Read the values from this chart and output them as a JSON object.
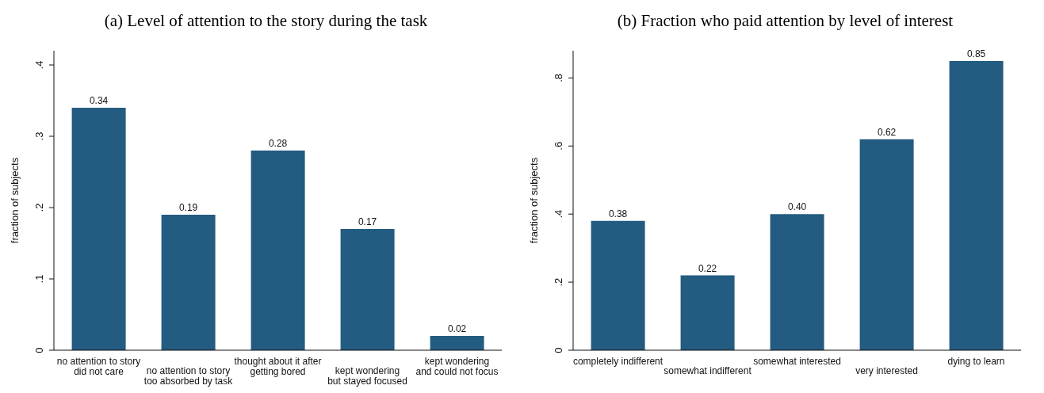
{
  "chart_data": [
    {
      "type": "bar",
      "title": "(a) Level of attention to the story during the task",
      "ylabel": "fraction of subjects",
      "categories": [
        "no attention to story\ndid not care",
        "no attention to story\ntoo absorbed by task",
        "thought about it after\ngetting bored",
        "kept wondering\nbut stayed focused",
        "kept wondering\nand could not focus"
      ],
      "values": [
        0.34,
        0.19,
        0.28,
        0.17,
        0.02
      ],
      "value_labels": [
        "0.34",
        "0.19",
        "0.28",
        "0.17",
        "0.02"
      ],
      "color": "#245b80",
      "ylim": [
        0,
        0.42
      ],
      "yticks": [
        {
          "value": 0,
          "label": "0"
        },
        {
          "value": 0.1,
          "label": ".1"
        },
        {
          "value": 0.2,
          "label": ".2"
        },
        {
          "value": 0.3,
          "label": ".3"
        },
        {
          "value": 0.4,
          "label": ".4"
        }
      ]
    },
    {
      "type": "bar",
      "title": "(b) Fraction who paid attention by level of interest",
      "ylabel": "fraction of subjects",
      "categories": [
        "completely indifferent",
        "somewhat indifferent",
        "somewhat interested",
        "very interested",
        "dying to learn"
      ],
      "values": [
        0.38,
        0.22,
        0.4,
        0.62,
        0.85
      ],
      "value_labels": [
        "0.38",
        "0.22",
        "0.40",
        "0.62",
        "0.85"
      ],
      "color": "#245b80",
      "ylim": [
        0,
        0.88
      ],
      "yticks": [
        {
          "value": 0,
          "label": "0"
        },
        {
          "value": 0.2,
          "label": ".2"
        },
        {
          "value": 0.4,
          "label": ".4"
        },
        {
          "value": 0.6,
          "label": ".6"
        },
        {
          "value": 0.8,
          "label": ".8"
        }
      ]
    }
  ]
}
